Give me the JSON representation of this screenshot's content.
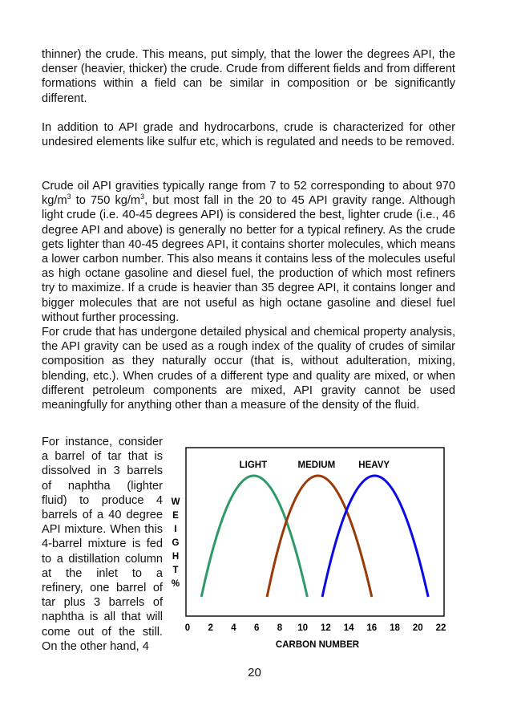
{
  "paragraphs": {
    "p1": "thinner) the crude. This means, put simply, that the lower the degrees API, the denser (heavier, thicker) the crude. Crude from different fields and from different formations within a field can be similar in composition or be significantly different.",
    "p2": "In addition to API grade and hydrocarbons, crude is characterized for other undesired elements like sulfur etc, which is regulated and needs to be removed.",
    "p3_a": "Crude oil API gravities typically range from 7 to 52 corresponding to about 970 kg/m",
    "p3_sup1": "3",
    "p3_b": " to 750 kg/m",
    "p3_sup2": "3",
    "p3_c": ", but most fall in the 20 to 45 API gravity range. Although light crude (i.e. 40-45 degrees API) is considered the best, lighter crude (i.e., 46 degree API and above) is generally no better for a typical refinery. As the crude gets lighter than 40-45 degrees API, it contains shorter molecules, which means a lower carbon number. This also means it contains less of the molecules useful as high octane gasoline and diesel fuel, the production of which most refiners try to maximize. If a crude is heavier than 35 degree API, it contains longer and bigger molecules that are not useful as high octane gasoline and diesel fuel without further processing.",
    "p4": "For crude that has undergone detailed physical and chemical property analysis, the API gravity can be used as a rough index of the quality of crudes of similar composition as they naturally occur (that is, without adulteration, mixing, blending, etc.). When crudes of a different type and quality are mixed, or when different petroleum components are mixed, API gravity cannot be used meaningfully for anything other than a measure of the density of the fluid.",
    "p5": "For instance, consider a barrel of tar that is dissolved in 3 barrels of naphtha (lighter fluid) to produce 4 barrels of a 40 degree API mixture. When this 4-barrel mixture is fed to a distillation column at the inlet to a refinery, one barrel of tar plus 3 barrels of naphtha is all that will come out of the still. On the other hand, 4"
  },
  "page_number": "20",
  "chart_data": {
    "type": "line",
    "title": "",
    "xlabel": "CARBON NUMBER",
    "ylabel": "WEIGHT %",
    "xlim": [
      0,
      22
    ],
    "ylim": [
      -15,
      115
    ],
    "xticks": [
      "0",
      "2",
      "4",
      "6",
      "8",
      "10",
      "12",
      "14",
      "16",
      "18",
      "20",
      "22"
    ],
    "grid": false,
    "legend": "labels above curves",
    "series": [
      {
        "name": "LIGHT",
        "color": "#2e9a6a",
        "x": [
          1.2,
          5.7,
          10.4
        ],
        "y": [
          0,
          100,
          0
        ]
      },
      {
        "name": "MEDIUM",
        "color": "#9a3a06",
        "x": [
          6.9,
          11.2,
          16.0
        ],
        "y": [
          0,
          100,
          0
        ]
      },
      {
        "name": "HEAVY",
        "color": "#0a0ae8",
        "x": [
          11.7,
          16.2,
          20.9
        ],
        "y": [
          0,
          100,
          0
        ]
      }
    ]
  }
}
